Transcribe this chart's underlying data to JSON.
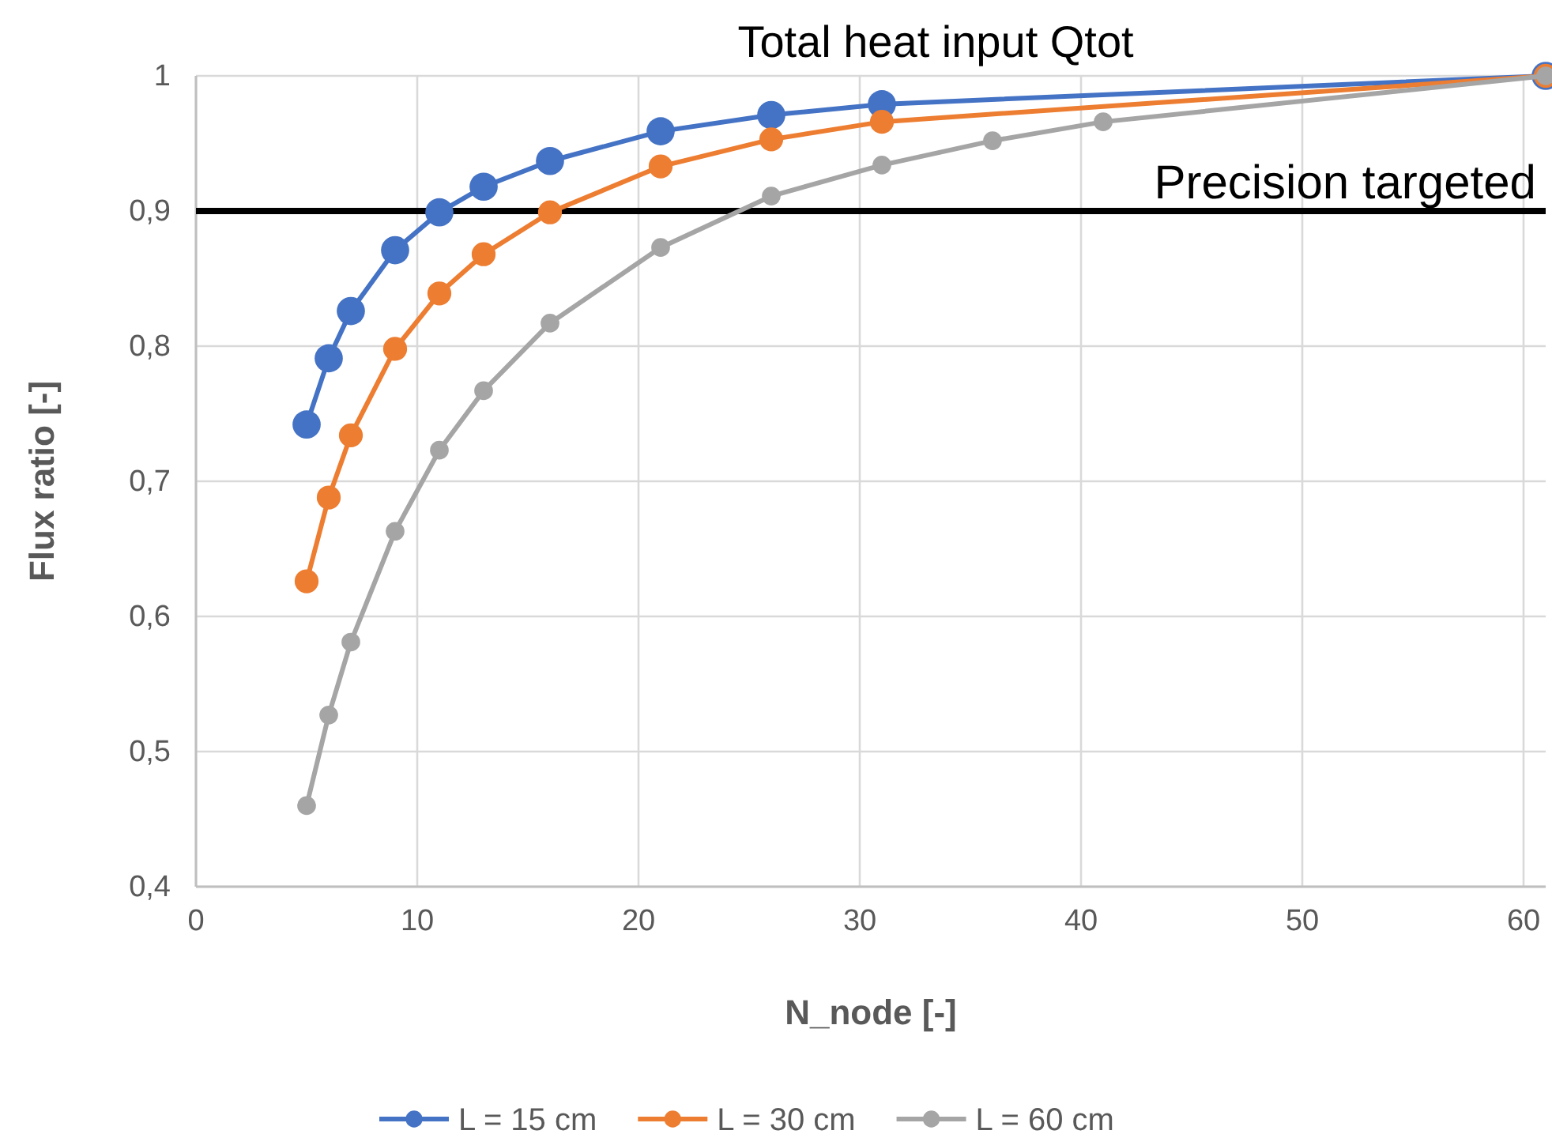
{
  "chart_data": {
    "type": "line",
    "title": "Total heat input Qtot",
    "xlabel": "N_node [-]",
    "ylabel": "Flux ratio [-]",
    "xlim": [
      0,
      61
    ],
    "xticks": [
      0,
      10,
      20,
      30,
      40,
      50,
      60
    ],
    "ylim": [
      0.4,
      1
    ],
    "yticks": [
      {
        "value": 0.4,
        "label": "0,4"
      },
      {
        "value": 0.5,
        "label": "0,5"
      },
      {
        "value": 0.6,
        "label": "0,6"
      },
      {
        "value": 0.7,
        "label": "0,7"
      },
      {
        "value": 0.8,
        "label": "0,8"
      },
      {
        "value": 0.9,
        "label": "0,9"
      },
      {
        "value": 1,
        "label": "1"
      }
    ],
    "grid": true,
    "legend": "bottom",
    "marker": "circle",
    "ref_lines": [
      {
        "axis": "y",
        "value": 0.9,
        "label": "Precision targeted",
        "color": "#000000"
      }
    ],
    "series": [
      {
        "name": "L = 15 cm",
        "color": "#4472c4",
        "x": [
          5,
          6,
          7,
          9,
          11,
          13,
          16,
          21,
          26,
          31,
          61
        ],
        "values": [
          0.742,
          0.791,
          0.826,
          0.871,
          0.899,
          0.918,
          0.937,
          0.959,
          0.971,
          0.979,
          1
        ]
      },
      {
        "name": "L = 30 cm",
        "color": "#ed7d31",
        "x": [
          5,
          6,
          7,
          9,
          11,
          13,
          16,
          21,
          26,
          31,
          61
        ],
        "values": [
          0.626,
          0.688,
          0.734,
          0.798,
          0.839,
          0.868,
          0.899,
          0.933,
          0.953,
          0.966,
          1
        ]
      },
      {
        "name": "L = 60 cm",
        "color": "#a5a5a5",
        "x": [
          5,
          6,
          7,
          9,
          11,
          13,
          16,
          21,
          26,
          31,
          36,
          41,
          61
        ],
        "values": [
          0.46,
          0.527,
          0.581,
          0.663,
          0.723,
          0.767,
          0.817,
          0.873,
          0.911,
          0.934,
          0.952,
          0.966,
          1
        ]
      }
    ]
  }
}
